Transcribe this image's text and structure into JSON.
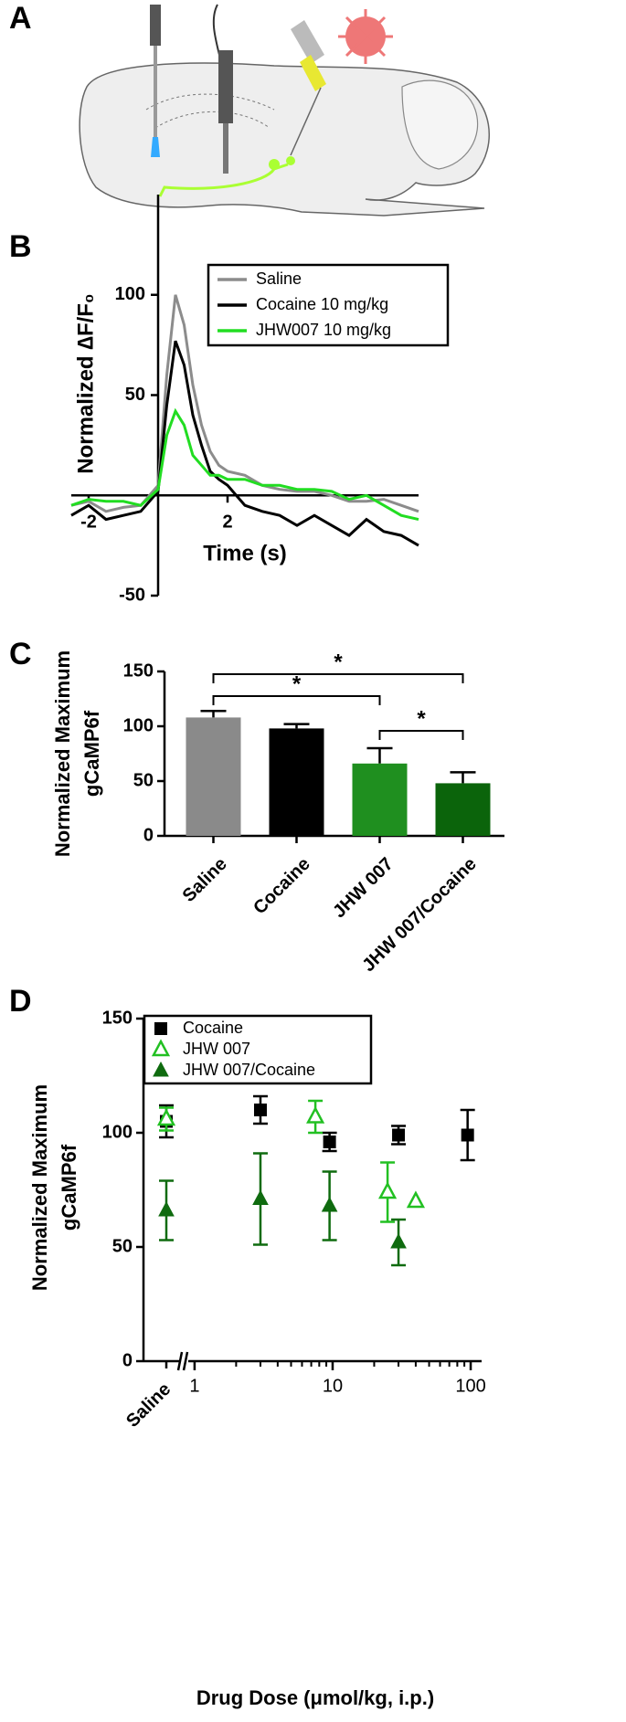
{
  "panel_labels": [
    "A",
    "B",
    "C",
    "D"
  ],
  "chart_data": [
    {
      "type": "line",
      "xlabel": "Time (s)",
      "ylabel": "Normalized ∆F/F₀",
      "xlim": [
        -2.5,
        7.5
      ],
      "ylim": [
        -50,
        150
      ],
      "xticks": [
        -2,
        2
      ],
      "yticks": [
        -50,
        50,
        100
      ],
      "legend": "upper right",
      "x": [
        -2.5,
        -2,
        -1.5,
        -1,
        -0.5,
        0,
        0.25,
        0.5,
        0.75,
        1,
        1.25,
        1.5,
        1.75,
        2,
        2.5,
        3,
        3.5,
        4,
        4.5,
        5,
        5.5,
        6,
        6.5,
        7,
        7.5
      ],
      "series": [
        {
          "name": "Saline",
          "color": "#8c8c8c",
          "values": [
            -5,
            -3,
            -8,
            -6,
            -5,
            5,
            60,
            100,
            85,
            55,
            35,
            22,
            15,
            12,
            10,
            5,
            3,
            2,
            2,
            0,
            -3,
            -3,
            -2,
            -5,
            -8
          ]
        },
        {
          "name": "Cocaine 10 mg/kg",
          "color": "#000000",
          "values": [
            -10,
            -5,
            -12,
            -10,
            -8,
            2,
            45,
            77,
            65,
            40,
            25,
            12,
            8,
            5,
            -5,
            -8,
            -10,
            -15,
            -10,
            -15,
            -20,
            -12,
            -18,
            -20,
            -25
          ]
        },
        {
          "name": "JHW007 10 mg/kg",
          "color": "#22dd22",
          "values": [
            -5,
            -2,
            -3,
            -3,
            -5,
            3,
            30,
            42,
            35,
            20,
            15,
            10,
            10,
            8,
            8,
            5,
            5,
            3,
            3,
            2,
            -2,
            0,
            -5,
            -10,
            -12
          ]
        }
      ]
    },
    {
      "type": "bar",
      "ylabel": [
        "Normalized Maximum",
        "gCaMP6f"
      ],
      "categories": [
        "Saline",
        "Cocaine",
        "JHW 007",
        "JHW 007/Cocaine"
      ],
      "values": [
        108,
        98,
        66,
        48
      ],
      "errors": [
        6,
        4,
        14,
        10
      ],
      "colors": [
        "#8a8a8a",
        "#000000",
        "#1f8f1f",
        "#0b640b"
      ],
      "ylim": [
        0,
        150
      ],
      "yticks": [
        0,
        50,
        100,
        150
      ],
      "annotations": [
        {
          "text": "*",
          "between": [
            "Saline",
            "JHW 007/Cocaine"
          ]
        },
        {
          "text": "*",
          "between": [
            "Saline",
            "JHW 007"
          ]
        },
        {
          "text": "*",
          "between": [
            "JHW 007",
            "JHW 007/Cocaine"
          ]
        }
      ]
    },
    {
      "type": "scatter",
      "xscale": "log",
      "xlabel": "Drug Dose (μmol/kg, i.p.)",
      "ylabel": [
        "Normalized Maximum",
        "gCaMP6f"
      ],
      "control_label": "Saline",
      "xlim": [
        0.9,
        120
      ],
      "xticks": [
        1,
        10,
        100
      ],
      "xminorticks": [
        2,
        3,
        4,
        5,
        6,
        7,
        8,
        9,
        20,
        30,
        40,
        50,
        60,
        70,
        80,
        90
      ],
      "ylim": [
        0,
        150
      ],
      "yticks": [
        0,
        50,
        100,
        150
      ],
      "legend": "upper left",
      "series": [
        {
          "name": "Cocaine",
          "color": "#000000",
          "marker": "square",
          "saline_value": 105,
          "saline_error": 7,
          "x": [
            3,
            9.5,
            30,
            95
          ],
          "values": [
            110,
            96,
            99,
            99
          ],
          "errors": [
            6,
            4,
            4,
            11
          ]
        },
        {
          "name": "JHW 007",
          "color": "#22c022",
          "marker": "open-triangle",
          "saline_value": 106,
          "saline_error": 5,
          "x": [
            7.5,
            25,
            40
          ],
          "values": [
            107,
            74,
            70
          ],
          "errors": [
            7,
            13,
            null
          ]
        },
        {
          "name": "JHW 007/Cocaine",
          "color": "#0f6b0f",
          "marker": "triangle",
          "saline_value": 66,
          "saline_error": 13,
          "x": [
            3,
            9.5,
            30
          ],
          "values": [
            71,
            68,
            52
          ],
          "errors": [
            20,
            15,
            10
          ]
        }
      ]
    }
  ]
}
